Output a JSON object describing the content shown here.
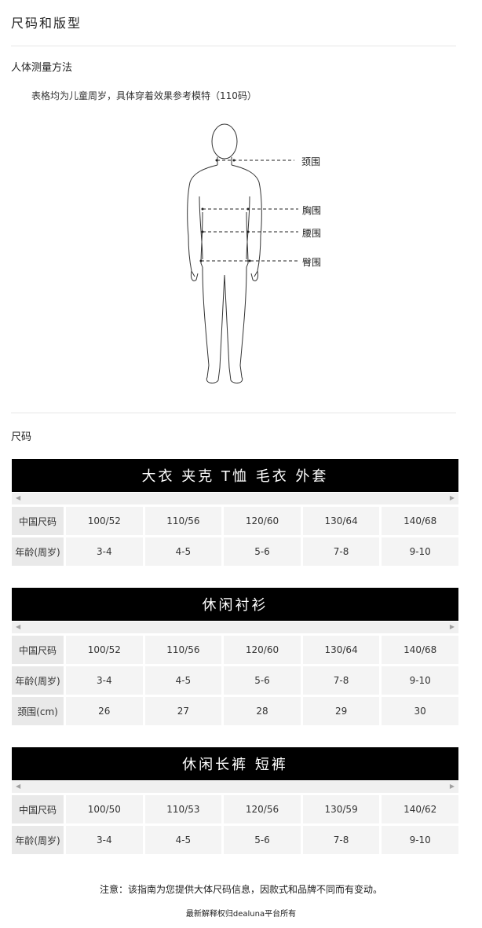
{
  "page_title": "尺码和版型",
  "measure_section": {
    "title": "人体测量方法",
    "note": "表格均为儿童周岁，具体穿着效果参考模特（110码）",
    "labels": {
      "neck": "颈围",
      "chest": "胸围",
      "waist": "腰围",
      "hip": "臀围"
    }
  },
  "size_section": {
    "title": "尺码"
  },
  "tables": [
    {
      "title": "大衣 夹克 T恤 毛衣 外套",
      "rows": [
        {
          "label": "中国尺码",
          "values": [
            "100/52",
            "110/56",
            "120/60",
            "130/64",
            "140/68"
          ]
        },
        {
          "label": "年龄(周岁)",
          "values": [
            "3-4",
            "4-5",
            "5-6",
            "7-8",
            "9-10"
          ]
        }
      ]
    },
    {
      "title": "休闲衬衫",
      "rows": [
        {
          "label": "中国尺码",
          "values": [
            "100/52",
            "110/56",
            "120/60",
            "130/64",
            "140/68"
          ]
        },
        {
          "label": "年龄(周岁)",
          "values": [
            "3-4",
            "4-5",
            "5-6",
            "7-8",
            "9-10"
          ]
        },
        {
          "label": "颈围(cm)",
          "values": [
            "26",
            "27",
            "28",
            "29",
            "30"
          ]
        }
      ]
    },
    {
      "title": "休闲长裤 短裤",
      "rows": [
        {
          "label": "中国尺码",
          "values": [
            "100/50",
            "110/53",
            "120/56",
            "130/59",
            "140/62"
          ]
        },
        {
          "label": "年龄(周岁)",
          "values": [
            "3-4",
            "4-5",
            "5-6",
            "7-8",
            "9-10"
          ]
        }
      ]
    }
  ],
  "scroll_icons": {
    "left": "◀",
    "right": "▶"
  },
  "footer": {
    "notice": "注意：该指南为您提供大体尺码信息，因款式和品牌不同而有变动。",
    "rights": "最新解释权归dealuna平台所有"
  }
}
